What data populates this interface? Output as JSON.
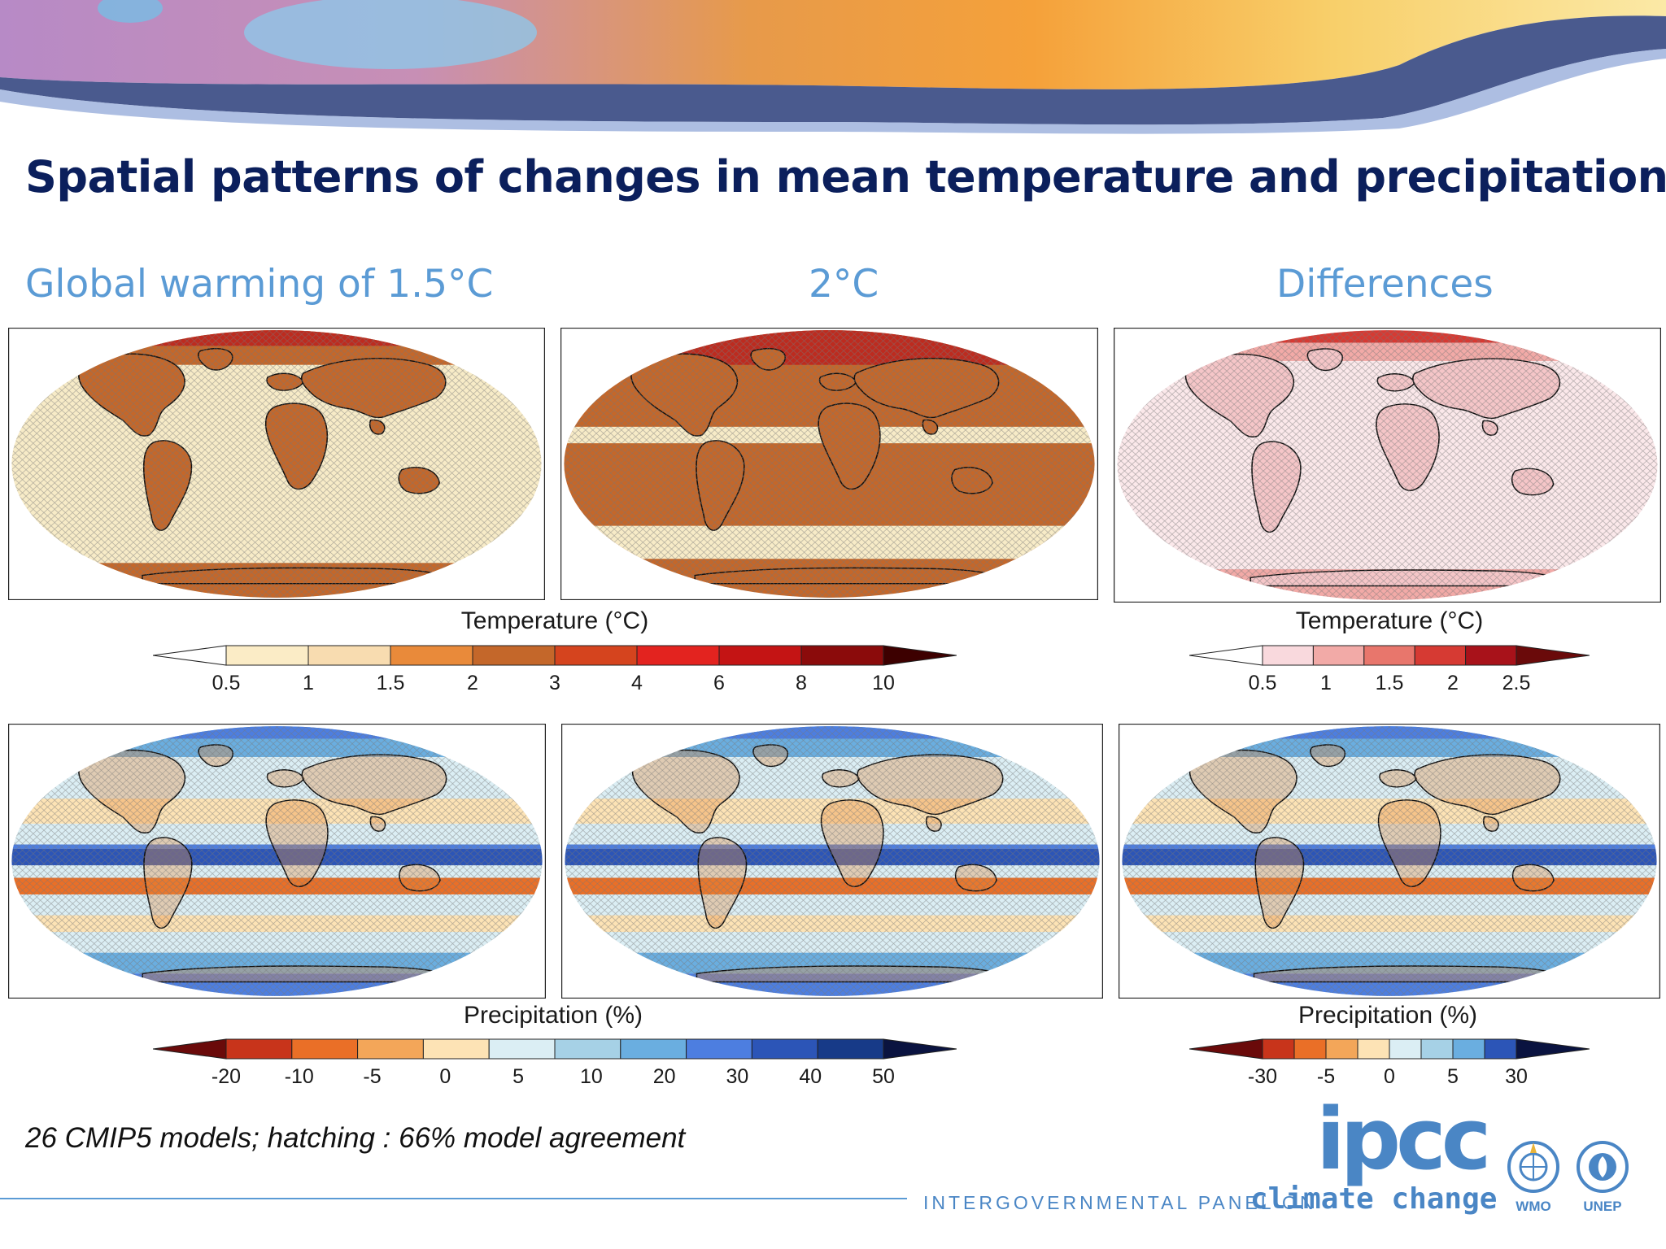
{
  "title": "Spatial patterns of changes in mean temperature and precipitation",
  "columns": [
    "Global warming of 1.5°C",
    "2°C",
    "Differences"
  ],
  "maps": [
    {
      "variable": "temperature",
      "scenario": "1.5°C"
    },
    {
      "variable": "temperature",
      "scenario": "2°C"
    },
    {
      "variable": "temperature",
      "scenario": "Differences"
    },
    {
      "variable": "precipitation",
      "scenario": "1.5°C"
    },
    {
      "variable": "precipitation",
      "scenario": "2°C"
    },
    {
      "variable": "precipitation",
      "scenario": "Differences"
    }
  ],
  "colorbars": {
    "temp_main": {
      "title": "Temperature (°C)",
      "ticks": [
        "0.5",
        "1",
        "1.5",
        "2",
        "3",
        "4",
        "6",
        "8",
        "10"
      ],
      "colors": [
        "#ffffff",
        "#fbecc6",
        "#f8dcb0",
        "#e98a3a",
        "#c4672a",
        "#d5441e",
        "#e3231f",
        "#c41414",
        "#8b0b0b",
        "#3d0000"
      ]
    },
    "temp_diff": {
      "title": "Temperature (°C)",
      "ticks": [
        "0.5",
        "1",
        "1.5",
        "2",
        "2.5"
      ],
      "colors": [
        "#ffffff",
        "#f9d9dd",
        "#f2aaa7",
        "#e8766c",
        "#d63a33",
        "#a8121a",
        "#6a0a0a"
      ]
    },
    "prec_main": {
      "title": "Precipitation (%)",
      "ticks": [
        "-20",
        "-10",
        "-5",
        "0",
        "5",
        "10",
        "20",
        "30",
        "40",
        "50"
      ],
      "colors": [
        "#6a0a0a",
        "#c8341b",
        "#ea6f27",
        "#f3a659",
        "#fde3b5",
        "#dbeef4",
        "#a6d1e6",
        "#6aaee0",
        "#4d7ee0",
        "#2c55b7",
        "#173a88",
        "#0a1340"
      ]
    },
    "prec_diff": {
      "title": "Precipitation (%)",
      "ticks": [
        "-30",
        "-5",
        "0",
        "5",
        "30"
      ],
      "colors": [
        "#6a0a0a",
        "#c8341b",
        "#ea6f27",
        "#f3a659",
        "#fde3b5",
        "#dbeef4",
        "#a6d1e6",
        "#6aaee0",
        "#2c55b7",
        "#0a1340"
      ]
    }
  },
  "footnote": "26 CMIP5 models; hatching : 66% model agreement",
  "logo": {
    "acronym": "ipcc",
    "line1": "INTERGOVERNMENTAL PANEL ON",
    "line2": "climate change",
    "partners": [
      "WMO",
      "UNEP"
    ]
  },
  "accent_colors": {
    "title": "#0b1f5c",
    "subtitle": "#5b9bd5"
  }
}
